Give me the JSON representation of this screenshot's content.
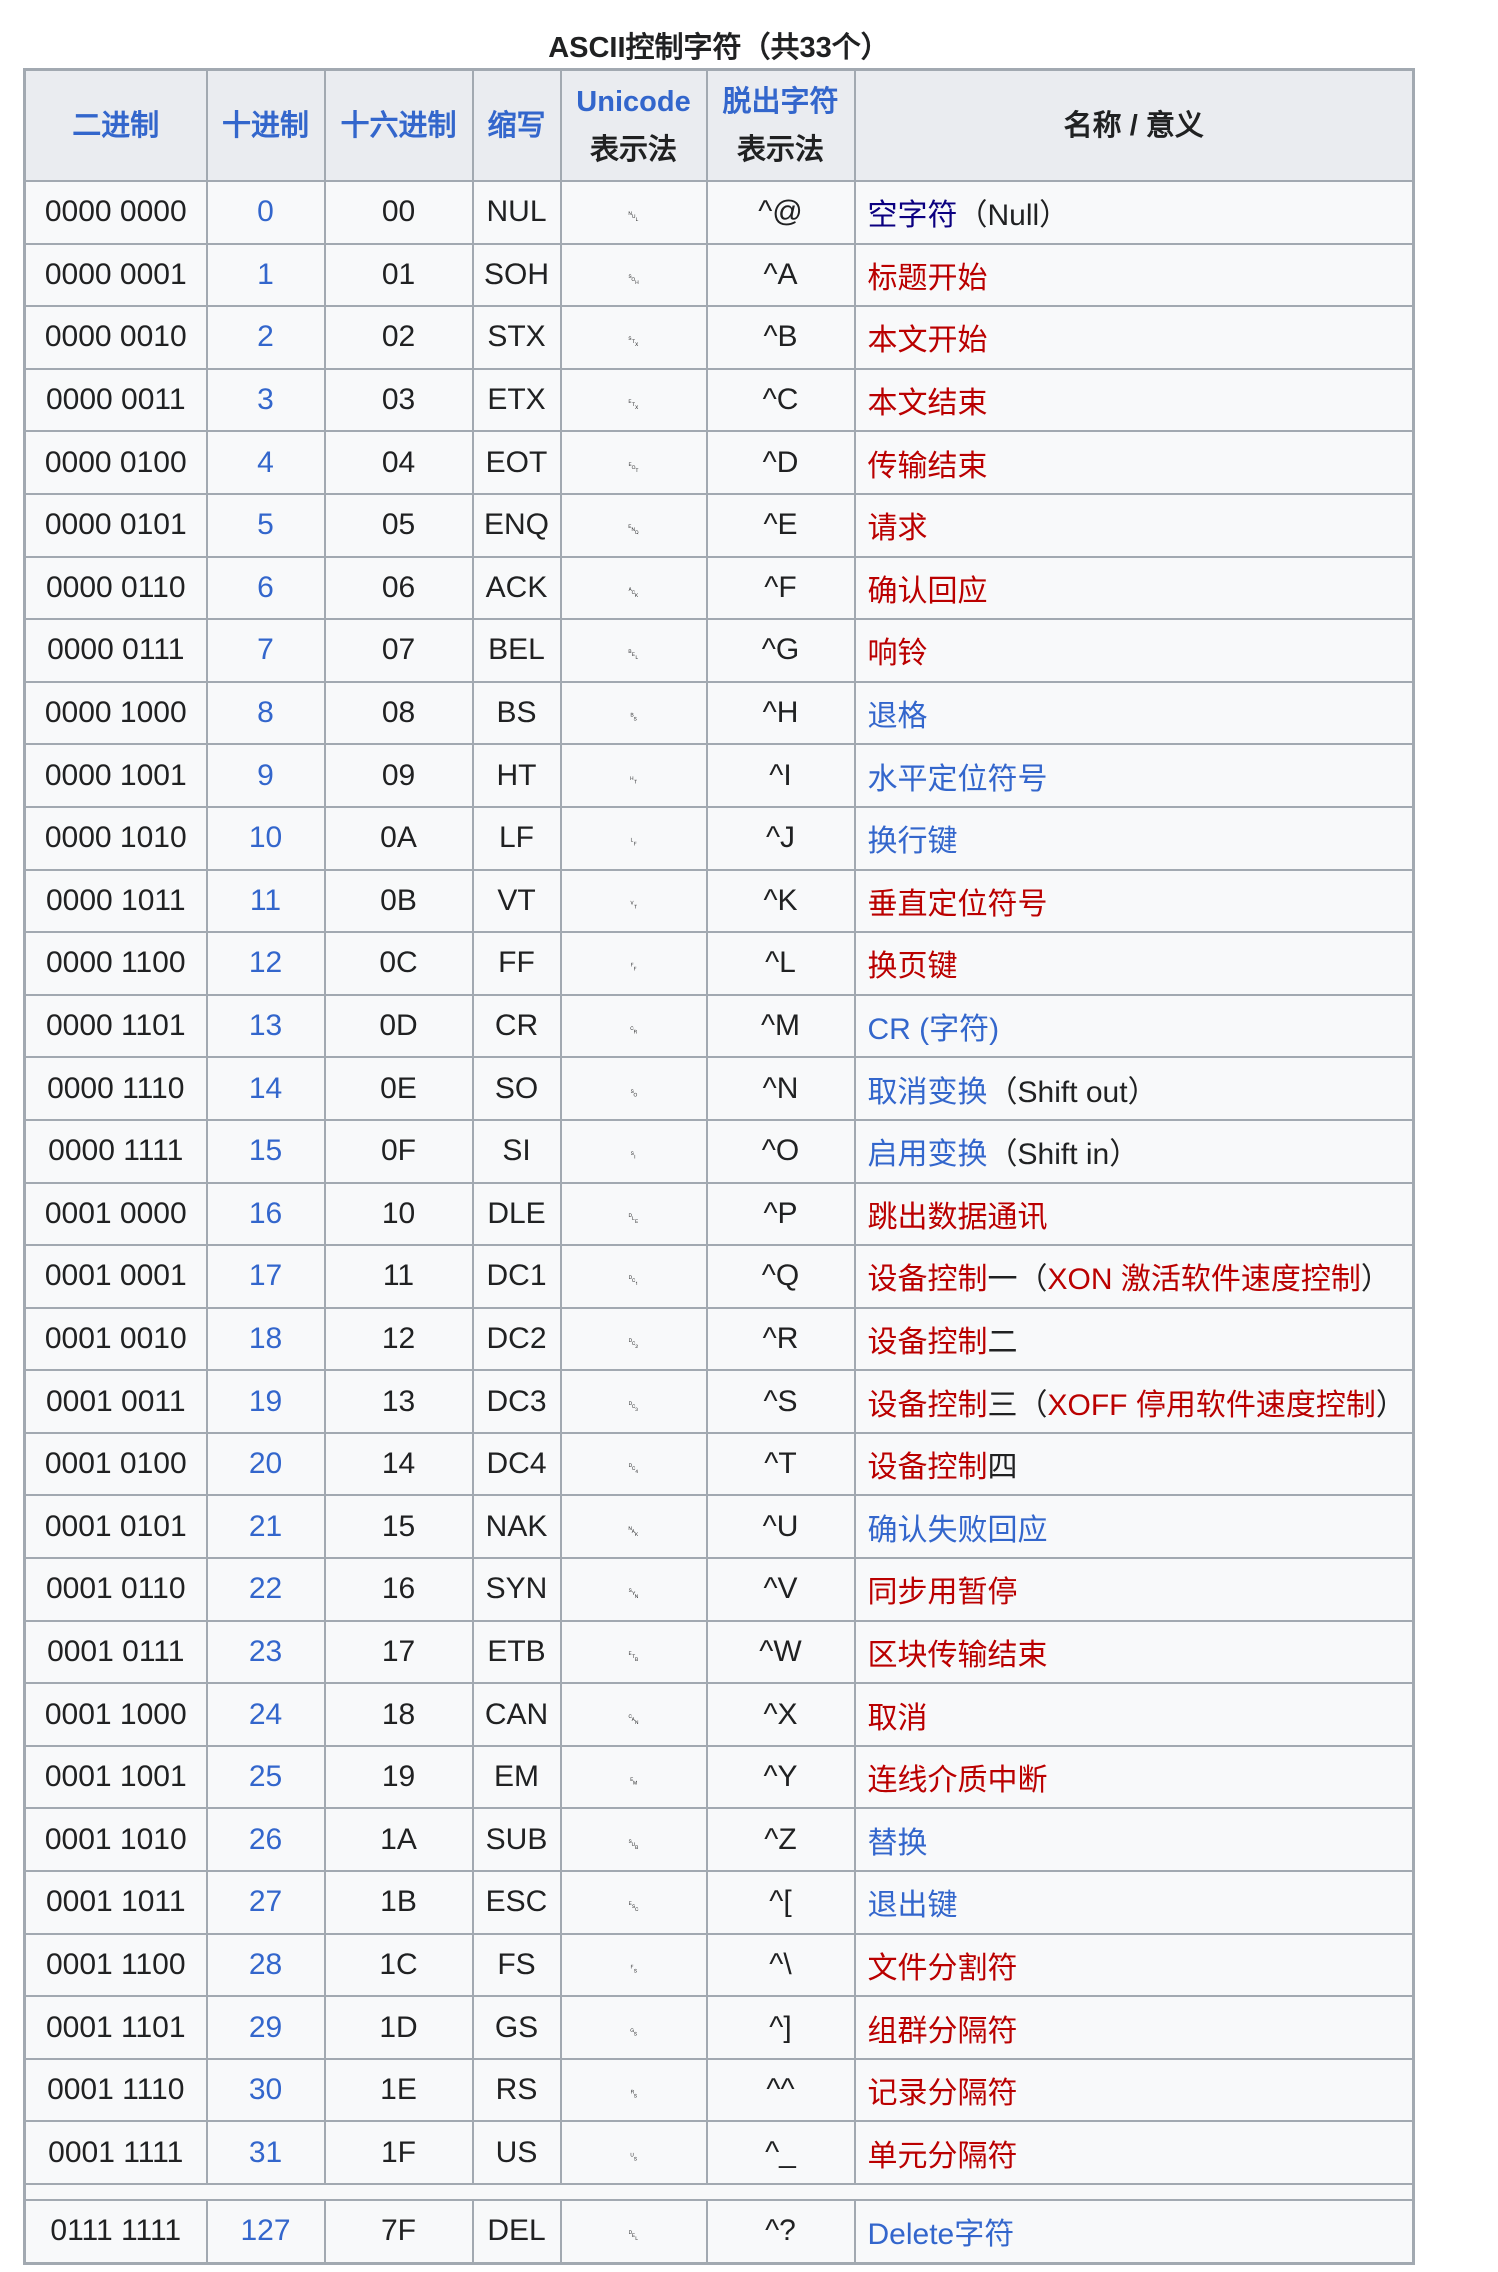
{
  "title": "ASCII控制字符（共33个）",
  "colors": {
    "link": "#3366cc",
    "redlink": "#ba0000",
    "visited": "#0b0080",
    "header_bg": "#eaecf0",
    "cell_bg": "#f8f9fa",
    "border": "#a2a9b1"
  },
  "headers": {
    "binary": "二进制",
    "decimal": "十进制",
    "hex": "十六进制",
    "abbr": "缩写",
    "unicode_top": "Unicode",
    "unicode_bottom": "表示法",
    "escape_top": "脱出字符",
    "escape_bottom": "表示法",
    "name": "名称 / 意义"
  },
  "rows": [
    {
      "bin": "0000 0000",
      "dec": "0",
      "hex": "00",
      "abbr": "NUL",
      "pic": "␀",
      "esc": "^@",
      "name": [
        {
          "t": "空字符",
          "c": "navy"
        },
        {
          "t": "（Null）",
          "c": ""
        }
      ]
    },
    {
      "bin": "0000 0001",
      "dec": "1",
      "hex": "01",
      "abbr": "SOH",
      "pic": "␁",
      "esc": "^A",
      "name": [
        {
          "t": "标题开始",
          "c": "red"
        }
      ]
    },
    {
      "bin": "0000 0010",
      "dec": "2",
      "hex": "02",
      "abbr": "STX",
      "pic": "␂",
      "esc": "^B",
      "name": [
        {
          "t": "本文开始",
          "c": "red"
        }
      ]
    },
    {
      "bin": "0000 0011",
      "dec": "3",
      "hex": "03",
      "abbr": "ETX",
      "pic": "␃",
      "esc": "^C",
      "name": [
        {
          "t": "本文结束",
          "c": "red"
        }
      ]
    },
    {
      "bin": "0000 0100",
      "dec": "4",
      "hex": "04",
      "abbr": "EOT",
      "pic": "␄",
      "esc": "^D",
      "name": [
        {
          "t": "传输结束",
          "c": "red"
        }
      ]
    },
    {
      "bin": "0000 0101",
      "dec": "5",
      "hex": "05",
      "abbr": "ENQ",
      "pic": "␅",
      "esc": "^E",
      "name": [
        {
          "t": "请求",
          "c": "red"
        }
      ]
    },
    {
      "bin": "0000 0110",
      "dec": "6",
      "hex": "06",
      "abbr": "ACK",
      "pic": "␆",
      "esc": "^F",
      "name": [
        {
          "t": "确认回应",
          "c": "red"
        }
      ]
    },
    {
      "bin": "0000 0111",
      "dec": "7",
      "hex": "07",
      "abbr": "BEL",
      "pic": "␇",
      "esc": "^G",
      "name": [
        {
          "t": "响铃",
          "c": "red"
        }
      ]
    },
    {
      "bin": "0000 1000",
      "dec": "8",
      "hex": "08",
      "abbr": "BS",
      "pic": "␈",
      "esc": "^H",
      "name": [
        {
          "t": "退格",
          "c": "blue"
        }
      ]
    },
    {
      "bin": "0000 1001",
      "dec": "9",
      "hex": "09",
      "abbr": "HT",
      "pic": "␉",
      "esc": "^I",
      "name": [
        {
          "t": "水平定位符号",
          "c": "blue"
        }
      ]
    },
    {
      "bin": "0000 1010",
      "dec": "10",
      "hex": "0A",
      "abbr": "LF",
      "pic": "␊",
      "esc": "^J",
      "name": [
        {
          "t": "换行键",
          "c": "blue"
        }
      ]
    },
    {
      "bin": "0000 1011",
      "dec": "11",
      "hex": "0B",
      "abbr": "VT",
      "pic": "␋",
      "esc": "^K",
      "name": [
        {
          "t": "垂直定位符号",
          "c": "red"
        }
      ]
    },
    {
      "bin": "0000 1100",
      "dec": "12",
      "hex": "0C",
      "abbr": "FF",
      "pic": "␌",
      "esc": "^L",
      "name": [
        {
          "t": "换页键",
          "c": "red"
        }
      ]
    },
    {
      "bin": "0000 1101",
      "dec": "13",
      "hex": "0D",
      "abbr": "CR",
      "pic": "␍",
      "esc": "^M",
      "name": [
        {
          "t": "CR (字符)",
          "c": "blue"
        }
      ]
    },
    {
      "bin": "0000 1110",
      "dec": "14",
      "hex": "0E",
      "abbr": "SO",
      "pic": "␎",
      "esc": "^N",
      "name": [
        {
          "t": "取消变换",
          "c": "blue"
        },
        {
          "t": "（Shift out）",
          "c": ""
        }
      ]
    },
    {
      "bin": "0000 1111",
      "dec": "15",
      "hex": "0F",
      "abbr": "SI",
      "pic": "␏",
      "esc": "^O",
      "name": [
        {
          "t": "启用变换",
          "c": "blue"
        },
        {
          "t": "（Shift in）",
          "c": ""
        }
      ]
    },
    {
      "bin": "0001 0000",
      "dec": "16",
      "hex": "10",
      "abbr": "DLE",
      "pic": "␐",
      "esc": "^P",
      "name": [
        {
          "t": "跳出数据通讯",
          "c": "red"
        }
      ]
    },
    {
      "bin": "0001 0001",
      "dec": "17",
      "hex": "11",
      "abbr": "DC1",
      "pic": "␑",
      "esc": "^Q",
      "name": [
        {
          "t": "设备控制",
          "c": "red"
        },
        {
          "t": "一（",
          "c": ""
        },
        {
          "t": "XON 激活软件速度控制",
          "c": "red"
        },
        {
          "t": "）",
          "c": ""
        }
      ]
    },
    {
      "bin": "0001 0010",
      "dec": "18",
      "hex": "12",
      "abbr": "DC2",
      "pic": "␒",
      "esc": "^R",
      "name": [
        {
          "t": "设备控制",
          "c": "red"
        },
        {
          "t": "二",
          "c": ""
        }
      ]
    },
    {
      "bin": "0001 0011",
      "dec": "19",
      "hex": "13",
      "abbr": "DC3",
      "pic": "␓",
      "esc": "^S",
      "name": [
        {
          "t": "设备控制",
          "c": "red"
        },
        {
          "t": "三（",
          "c": ""
        },
        {
          "t": "XOFF 停用软件速度控制",
          "c": "red"
        },
        {
          "t": "）",
          "c": ""
        }
      ]
    },
    {
      "bin": "0001 0100",
      "dec": "20",
      "hex": "14",
      "abbr": "DC4",
      "pic": "␔",
      "esc": "^T",
      "name": [
        {
          "t": "设备控制",
          "c": "red"
        },
        {
          "t": "四",
          "c": ""
        }
      ]
    },
    {
      "bin": "0001 0101",
      "dec": "21",
      "hex": "15",
      "abbr": "NAK",
      "pic": "␕",
      "esc": "^U",
      "name": [
        {
          "t": "确认失败回应",
          "c": "blue"
        }
      ]
    },
    {
      "bin": "0001 0110",
      "dec": "22",
      "hex": "16",
      "abbr": "SYN",
      "pic": "␖",
      "esc": "^V",
      "name": [
        {
          "t": "同步用暂停",
          "c": "red"
        }
      ]
    },
    {
      "bin": "0001 0111",
      "dec": "23",
      "hex": "17",
      "abbr": "ETB",
      "pic": "␗",
      "esc": "^W",
      "name": [
        {
          "t": "区块传输结束",
          "c": "red"
        }
      ]
    },
    {
      "bin": "0001 1000",
      "dec": "24",
      "hex": "18",
      "abbr": "CAN",
      "pic": "␘",
      "esc": "^X",
      "name": [
        {
          "t": "取消",
          "c": "red"
        }
      ]
    },
    {
      "bin": "0001 1001",
      "dec": "25",
      "hex": "19",
      "abbr": "EM",
      "pic": "␙",
      "esc": "^Y",
      "name": [
        {
          "t": "连线介质中断",
          "c": "red"
        }
      ]
    },
    {
      "bin": "0001 1010",
      "dec": "26",
      "hex": "1A",
      "abbr": "SUB",
      "pic": "␚",
      "esc": "^Z",
      "name": [
        {
          "t": "替换",
          "c": "blue"
        }
      ]
    },
    {
      "bin": "0001 1011",
      "dec": "27",
      "hex": "1B",
      "abbr": "ESC",
      "pic": "␛",
      "esc": "^[",
      "name": [
        {
          "t": "退出键",
          "c": "blue"
        }
      ]
    },
    {
      "bin": "0001 1100",
      "dec": "28",
      "hex": "1C",
      "abbr": "FS",
      "pic": "␜",
      "esc": "^\\",
      "name": [
        {
          "t": "文件分割符",
          "c": "red"
        }
      ]
    },
    {
      "bin": "0001 1101",
      "dec": "29",
      "hex": "1D",
      "abbr": "GS",
      "pic": "␝",
      "esc": "^]",
      "name": [
        {
          "t": "组群分隔符",
          "c": "red"
        }
      ]
    },
    {
      "bin": "0001 1110",
      "dec": "30",
      "hex": "1E",
      "abbr": "RS",
      "pic": "␞",
      "esc": "^^",
      "name": [
        {
          "t": "记录分隔符",
          "c": "red"
        }
      ]
    },
    {
      "bin": "0001 1111",
      "dec": "31",
      "hex": "1F",
      "abbr": "US",
      "pic": "␟",
      "esc": "^_",
      "name": [
        {
          "t": "单元分隔符",
          "c": "red"
        }
      ]
    }
  ],
  "del_row": {
    "bin": "0111 1111",
    "dec": "127",
    "hex": "7F",
    "abbr": "DEL",
    "pic": "␡",
    "esc": "^?",
    "name": [
      {
        "t": "Delete字符",
        "c": "blue"
      }
    ]
  }
}
